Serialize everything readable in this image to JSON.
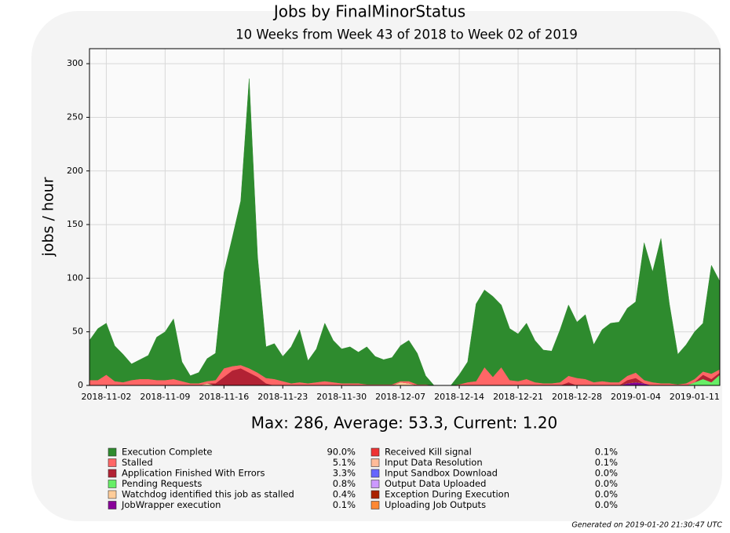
{
  "chart_data": {
    "type": "stacked-area",
    "title": "Jobs by FinalMinorStatus",
    "subtitle": "10 Weeks from Week 43 of 2018 to Week 02 of 2019",
    "y_label": "jobs / hour",
    "summary": "Max: 286, Average: 53.3, Current: 1.20",
    "footer": "Generated on 2019-01-20 21:30:47 UTC",
    "grid": true,
    "x": [
      "2018-10-31",
      "2018-11-01",
      "2018-11-02",
      "2018-11-03",
      "2018-11-04",
      "2018-11-05",
      "2018-11-06",
      "2018-11-07",
      "2018-11-08",
      "2018-11-09",
      "2018-11-10",
      "2018-11-11",
      "2018-11-12",
      "2018-11-13",
      "2018-11-14",
      "2018-11-15",
      "2018-11-16",
      "2018-11-17",
      "2018-11-18",
      "2018-11-19",
      "2018-11-20",
      "2018-11-21",
      "2018-11-22",
      "2018-11-23",
      "2018-11-24",
      "2018-11-25",
      "2018-11-26",
      "2018-11-27",
      "2018-11-28",
      "2018-11-29",
      "2018-11-30",
      "2018-12-01",
      "2018-12-02",
      "2018-12-03",
      "2018-12-04",
      "2018-12-05",
      "2018-12-06",
      "2018-12-07",
      "2018-12-08",
      "2018-12-09",
      "2018-12-10",
      "2018-12-11",
      "2018-12-12",
      "2018-12-13",
      "2018-12-14",
      "2018-12-15",
      "2018-12-16",
      "2018-12-17",
      "2018-12-18",
      "2018-12-19",
      "2018-12-20",
      "2018-12-21",
      "2018-12-22",
      "2018-12-23",
      "2018-12-24",
      "2018-12-25",
      "2018-12-26",
      "2018-12-27",
      "2018-12-28",
      "2018-12-29",
      "2018-12-30",
      "2018-12-31",
      "2019-01-01",
      "2019-01-02",
      "2019-01-03",
      "2019-01-04",
      "2019-01-05",
      "2019-01-06",
      "2019-01-07",
      "2019-01-08",
      "2019-01-09",
      "2019-01-10",
      "2019-01-11",
      "2019-01-12",
      "2019-01-13",
      "2019-01-14"
    ],
    "xlim": [
      "2018-10-31",
      "2019-01-14"
    ],
    "xticks": [
      "2018-11-02",
      "2018-11-09",
      "2018-11-16",
      "2018-11-23",
      "2018-11-30",
      "2018-12-07",
      "2018-12-14",
      "2018-12-21",
      "2018-12-28",
      "2019-01-04",
      "2019-01-11"
    ],
    "ylim": [
      0,
      314
    ],
    "yticks": [
      0,
      50,
      100,
      150,
      200,
      250,
      300
    ],
    "series": [
      {
        "name": "Execution Complete",
        "share": "90.0%",
        "color": "#2e8b2e",
        "values": [
          37,
          48,
          48,
          33,
          26,
          15,
          18,
          22,
          40,
          45,
          56,
          18,
          7,
          10,
          21,
          25,
          89,
          120,
          153,
          270,
          108,
          29,
          33,
          23,
          34,
          49,
          21,
          31,
          54,
          39,
          32,
          34,
          29,
          35,
          26,
          23,
          25,
          33,
          38,
          29,
          8,
          0,
          0,
          0,
          9,
          19,
          72,
          72,
          75,
          58,
          48,
          44,
          52,
          39,
          31,
          30,
          49,
          66,
          52,
          60,
          35,
          48,
          55,
          56,
          63,
          66,
          128,
          103,
          135,
          74,
          28,
          36,
          44,
          45,
          101,
          82
        ]
      },
      {
        "name": "Stalled",
        "share": "5.1%",
        "color": "#ff6666",
        "values": [
          5,
          5,
          10,
          4,
          3,
          5,
          6,
          6,
          5,
          5,
          6,
          4,
          2,
          2,
          2,
          3,
          8,
          4,
          3,
          4,
          4,
          5,
          6,
          4,
          2,
          3,
          2,
          3,
          4,
          3,
          2,
          2,
          2,
          1,
          1,
          1,
          1,
          1,
          2,
          1,
          1,
          0,
          0,
          0,
          1,
          3,
          4,
          17,
          8,
          17,
          5,
          4,
          6,
          3,
          2,
          2,
          3,
          6,
          7,
          6,
          3,
          4,
          3,
          3,
          4,
          5,
          3,
          3,
          2,
          2,
          1,
          2,
          3,
          3,
          5,
          3
        ]
      },
      {
        "name": "Application Finished With Errors",
        "share": "3.3%",
        "color": "#b22234",
        "values": [
          0,
          0,
          0,
          0,
          0,
          0,
          0,
          0,
          0,
          0,
          0,
          0,
          0,
          0,
          0,
          2,
          8,
          14,
          16,
          12,
          8,
          2,
          0,
          0,
          0,
          0,
          0,
          0,
          0,
          0,
          0,
          0,
          0,
          0,
          0,
          0,
          0,
          0,
          0,
          0,
          0,
          0,
          0,
          0,
          0,
          0,
          0,
          0,
          0,
          0,
          0,
          0,
          0,
          0,
          0,
          0,
          0,
          3,
          0,
          0,
          0,
          0,
          0,
          0,
          3,
          4,
          0,
          0,
          0,
          0,
          0,
          0,
          0,
          4,
          3,
          2
        ]
      },
      {
        "name": "Pending Requests",
        "share": "0.8%",
        "color": "#66ee66",
        "values": [
          0,
          0,
          0,
          0,
          0,
          0,
          0,
          0,
          0,
          0,
          0,
          0,
          0,
          0,
          0,
          0,
          0,
          0,
          0,
          0,
          0,
          0,
          0,
          0,
          0,
          0,
          0,
          0,
          0,
          0,
          0,
          0,
          0,
          0,
          0,
          0,
          0,
          0,
          0,
          0,
          0,
          0,
          0,
          0,
          0,
          0,
          0,
          0,
          0,
          0,
          0,
          0,
          0,
          0,
          0,
          0,
          0,
          0,
          0,
          0,
          0,
          0,
          0,
          0,
          0,
          0,
          0,
          0,
          0,
          0,
          0,
          0,
          3,
          6,
          3,
          10
        ]
      },
      {
        "name": "Watchdog identified this job as stalled",
        "share": "0.4%",
        "color": "#ffcc99",
        "values": [
          0,
          0,
          0,
          0,
          0,
          0,
          0,
          0,
          0,
          0,
          0,
          0,
          0,
          0,
          2,
          0,
          0,
          0,
          0,
          0,
          0,
          0,
          0,
          0,
          0,
          0,
          0,
          0,
          0,
          0,
          0,
          0,
          0,
          0,
          0,
          0,
          0,
          3,
          2,
          0,
          0,
          0,
          0,
          0,
          0,
          0,
          0,
          0,
          0,
          0,
          0,
          0,
          0,
          0,
          0,
          0,
          0,
          0,
          0,
          0,
          0,
          0,
          0,
          0,
          0,
          0,
          0,
          0,
          0,
          0,
          0,
          0,
          0,
          0,
          0,
          0
        ]
      },
      {
        "name": "JobWrapper execution",
        "share": "0.1%",
        "color": "#880099",
        "values": [
          0,
          0,
          0,
          0,
          0,
          0,
          0,
          0,
          0,
          0,
          0,
          0,
          0,
          0,
          0,
          0,
          0,
          0,
          0,
          0,
          0,
          0,
          0,
          0,
          0,
          0,
          0,
          0,
          0,
          0,
          0,
          0,
          0,
          0,
          0,
          0,
          0,
          0,
          0,
          0,
          0,
          0,
          0,
          0,
          0,
          0,
          0,
          0,
          0,
          0,
          0,
          0,
          0,
          0,
          0,
          0,
          0,
          0,
          0,
          0,
          0,
          0,
          0,
          0,
          2,
          3,
          2,
          0,
          0,
          0,
          0,
          0,
          0,
          0,
          0,
          0
        ]
      },
      {
        "name": "Received Kill signal",
        "share": "0.1%",
        "color": "#ee3333",
        "values": [
          0,
          0,
          0,
          0,
          0,
          0,
          0,
          0,
          0,
          0,
          0,
          0,
          0,
          0,
          0,
          0,
          0,
          0,
          0,
          0,
          0,
          0,
          0,
          0,
          0,
          0,
          0,
          0,
          0,
          0,
          0,
          0,
          0,
          0,
          0,
          0,
          0,
          0,
          0,
          0,
          0,
          0,
          0,
          0,
          0,
          0,
          0,
          0,
          0,
          0,
          0,
          0,
          0,
          0,
          0,
          0,
          0,
          0,
          0,
          0,
          0,
          0,
          0,
          0,
          0,
          0,
          0,
          0,
          0,
          0,
          0,
          0,
          0,
          0,
          0,
          0
        ]
      },
      {
        "name": "Input Data Resolution",
        "share": "0.1%",
        "color": "#ffbb99",
        "values": [
          0,
          0,
          0,
          0,
          0,
          0,
          0,
          0,
          0,
          0,
          0,
          0,
          0,
          0,
          0,
          0,
          0,
          0,
          0,
          0,
          0,
          0,
          0,
          0,
          0,
          0,
          0,
          0,
          0,
          0,
          0,
          0,
          0,
          0,
          0,
          0,
          0,
          0,
          0,
          0,
          0,
          0,
          0,
          0,
          0,
          0,
          0,
          0,
          0,
          0,
          0,
          0,
          0,
          0,
          0,
          0,
          0,
          0,
          0,
          0,
          0,
          0,
          0,
          0,
          0,
          0,
          0,
          0,
          0,
          0,
          0,
          0,
          0,
          0,
          0,
          0
        ]
      },
      {
        "name": "Input Sandbox Download",
        "share": "0.0%",
        "color": "#6666ff",
        "values": [
          0,
          0,
          0,
          0,
          0,
          0,
          0,
          0,
          0,
          0,
          0,
          0,
          0,
          0,
          0,
          0,
          0,
          0,
          0,
          0,
          0,
          0,
          0,
          0,
          0,
          0,
          0,
          0,
          0,
          0,
          0,
          0,
          0,
          0,
          0,
          0,
          0,
          0,
          0,
          0,
          0,
          0,
          0,
          0,
          0,
          0,
          0,
          0,
          0,
          0,
          0,
          0,
          0,
          0,
          0,
          0,
          0,
          0,
          0,
          0,
          0,
          0,
          0,
          0,
          0,
          0,
          0,
          0,
          0,
          0,
          0,
          0,
          0,
          0,
          0,
          0
        ]
      },
      {
        "name": "Output Data Uploaded",
        "share": "0.0%",
        "color": "#cc99ff",
        "values": [
          0,
          0,
          0,
          0,
          0,
          0,
          0,
          0,
          0,
          0,
          0,
          0,
          0,
          0,
          0,
          0,
          0,
          0,
          0,
          0,
          0,
          0,
          0,
          0,
          0,
          0,
          0,
          0,
          0,
          0,
          0,
          0,
          0,
          0,
          0,
          0,
          0,
          0,
          0,
          0,
          0,
          0,
          0,
          0,
          0,
          0,
          0,
          0,
          0,
          0,
          0,
          0,
          0,
          0,
          0,
          0,
          0,
          0,
          0,
          0,
          0,
          0,
          0,
          0,
          0,
          0,
          0,
          0,
          0,
          0,
          0,
          0,
          0,
          0,
          0,
          0
        ]
      },
      {
        "name": "Exception During Execution",
        "share": "0.0%",
        "color": "#aa2200",
        "values": [
          0,
          0,
          0,
          0,
          0,
          0,
          0,
          0,
          0,
          0,
          0,
          0,
          0,
          0,
          0,
          0,
          0,
          0,
          0,
          0,
          0,
          0,
          0,
          0,
          0,
          0,
          0,
          0,
          0,
          0,
          0,
          0,
          0,
          0,
          0,
          0,
          0,
          0,
          0,
          0,
          0,
          0,
          0,
          0,
          0,
          0,
          0,
          0,
          0,
          0,
          0,
          0,
          0,
          0,
          0,
          0,
          0,
          0,
          0,
          0,
          0,
          0,
          0,
          0,
          0,
          0,
          0,
          0,
          0,
          0,
          0,
          0,
          0,
          0,
          0,
          0
        ]
      },
      {
        "name": "Uploading Job Outputs",
        "share": "0.0%",
        "color": "#ff8833",
        "values": [
          0,
          0,
          0,
          0,
          0,
          0,
          0,
          0,
          0,
          0,
          0,
          0,
          0,
          0,
          0,
          0,
          0,
          0,
          0,
          0,
          0,
          0,
          0,
          0,
          0,
          0,
          0,
          0,
          0,
          0,
          0,
          0,
          0,
          0,
          0,
          0,
          0,
          0,
          0,
          0,
          0,
          0,
          0,
          0,
          0,
          0,
          0,
          0,
          0,
          0,
          0,
          0,
          0,
          0,
          0,
          0,
          0,
          0,
          0,
          0,
          0,
          0,
          0,
          0,
          0,
          0,
          0,
          0,
          0,
          0,
          0,
          0,
          0,
          0,
          0,
          0
        ]
      }
    ]
  }
}
